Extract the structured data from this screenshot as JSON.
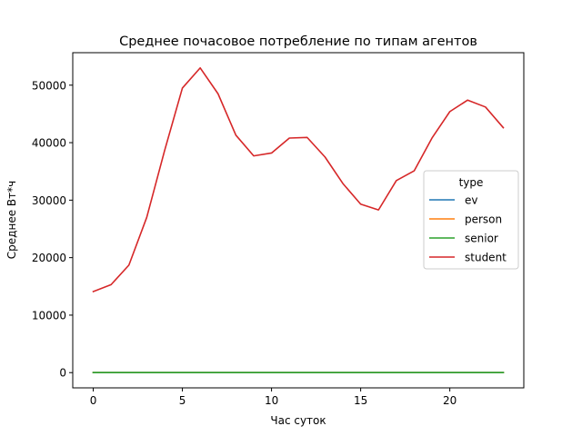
{
  "chart_data": {
    "type": "line",
    "title": "Среднее почасовое потребление по типам агентов",
    "xlabel": "Час суток",
    "ylabel": "Среднее Вт*ч",
    "xlim": [
      -1.15,
      24.15
    ],
    "ylim": [
      -2650,
      55650
    ],
    "xticks": [
      0,
      5,
      10,
      15,
      20
    ],
    "yticks": [
      0,
      10000,
      20000,
      30000,
      40000,
      50000
    ],
    "x": [
      0,
      1,
      2,
      3,
      4,
      5,
      6,
      7,
      8,
      9,
      10,
      11,
      12,
      13,
      14,
      15,
      16,
      17,
      18,
      19,
      20,
      21,
      22,
      23
    ],
    "grid": false,
    "legend": {
      "title": "type",
      "position": "center-right"
    },
    "series": [
      {
        "name": "ev",
        "color": "#1f77b4",
        "values": [
          0,
          0,
          0,
          0,
          0,
          0,
          0,
          0,
          0,
          0,
          0,
          0,
          0,
          0,
          0,
          0,
          0,
          0,
          0,
          0,
          0,
          0,
          0,
          0
        ]
      },
      {
        "name": "person",
        "color": "#ff7f0e",
        "values": [
          0,
          0,
          0,
          0,
          0,
          0,
          0,
          0,
          0,
          0,
          0,
          0,
          0,
          0,
          0,
          0,
          0,
          0,
          0,
          0,
          0,
          0,
          0,
          0
        ]
      },
      {
        "name": "senior",
        "color": "#2ca02c",
        "values": [
          0,
          0,
          0,
          0,
          0,
          0,
          0,
          0,
          0,
          0,
          0,
          0,
          0,
          0,
          0,
          0,
          0,
          0,
          0,
          0,
          0,
          0,
          0,
          0
        ]
      },
      {
        "name": "student",
        "color": "#d62728",
        "values": [
          14100,
          15300,
          18700,
          27000,
          38600,
          49500,
          53000,
          48500,
          41300,
          37700,
          38200,
          40800,
          40900,
          37500,
          32900,
          29300,
          28300,
          33400,
          35100,
          40800,
          45400,
          47400,
          46200,
          42600
        ]
      }
    ]
  }
}
